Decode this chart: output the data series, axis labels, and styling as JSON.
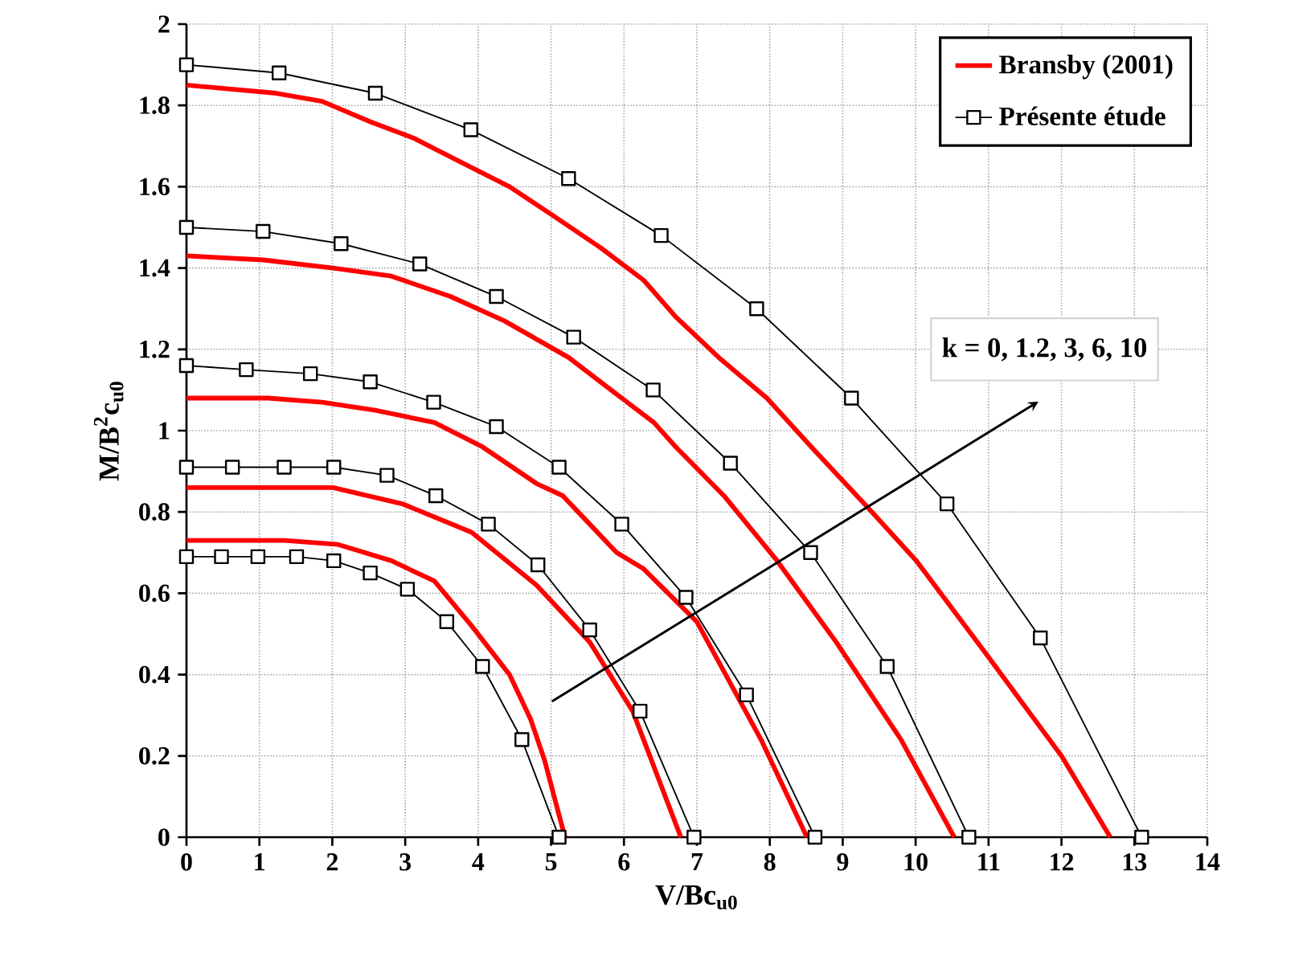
{
  "chart_data": {
    "type": "line",
    "xlabel": "V/Bc$_{u0}$",
    "ylabel": "M/B$^{2}$c$_{u0}$",
    "xlim": [
      0,
      14
    ],
    "ylim": [
      0,
      2
    ],
    "xticks": [
      0,
      1,
      2,
      3,
      4,
      5,
      6,
      7,
      8,
      9,
      10,
      11,
      12,
      13,
      14
    ],
    "yticks": [
      0,
      0.2,
      0.4,
      0.6,
      0.8,
      1,
      1.2,
      1.4,
      1.6,
      1.8,
      2
    ],
    "grid": true,
    "legend": "top right",
    "line_style": "solid",
    "annotations": [
      "k = 0, 1.2,  3,  6,  10"
    ],
    "series": [
      {
        "name": "Bransby (2001)",
        "color": "#ff0000",
        "marker": "none",
        "x": [
          0,
          1.23,
          1.86,
          2.52,
          3.11,
          3.77,
          4.43,
          5.02,
          5.68,
          6.27,
          6.71,
          7.3,
          7.96,
          8.62,
          9.35,
          10.01,
          10.97,
          12.0,
          12.67
        ],
        "values": [
          1.85,
          1.83,
          1.81,
          1.76,
          1.72,
          1.66,
          1.6,
          1.53,
          1.45,
          1.37,
          1.28,
          1.18,
          1.08,
          0.95,
          0.81,
          0.68,
          0.45,
          0.2,
          0
        ]
      },
      {
        "color": "#ff0000",
        "marker": "none",
        "x": [
          0,
          1.05,
          2.01,
          2.81,
          3.62,
          4.36,
          5.24,
          5.97,
          6.41,
          6.71,
          7.37,
          8.1,
          8.91,
          9.8,
          10.53
        ],
        "values": [
          1.43,
          1.42,
          1.4,
          1.38,
          1.33,
          1.27,
          1.18,
          1.08,
          1.02,
          0.96,
          0.84,
          0.68,
          0.48,
          0.24,
          0
        ]
      },
      {
        "color": "#ff0000",
        "marker": "none",
        "x": [
          0,
          1.12,
          1.86,
          2.59,
          3.4,
          4.06,
          4.8,
          5.16,
          5.53,
          5.9,
          6.27,
          7.0,
          7.88,
          8.51
        ],
        "values": [
          1.08,
          1.08,
          1.07,
          1.05,
          1.02,
          0.96,
          0.87,
          0.84,
          0.77,
          0.7,
          0.66,
          0.53,
          0.24,
          0
        ]
      },
      {
        "color": "#ff0000",
        "marker": "none",
        "x": [
          0,
          1.34,
          2.01,
          2.96,
          3.91,
          4.8,
          5.53,
          6.12,
          6.78
        ],
        "values": [
          0.86,
          0.86,
          0.86,
          0.82,
          0.75,
          0.62,
          0.48,
          0.31,
          0
        ]
      },
      {
        "color": "#ff0000",
        "marker": "none",
        "x": [
          0,
          1.34,
          2.08,
          2.81,
          3.4,
          3.91,
          4.43,
          4.72,
          4.91,
          5.19
        ],
        "values": [
          0.73,
          0.73,
          0.72,
          0.68,
          0.63,
          0.52,
          0.4,
          0.29,
          0.19,
          0
        ]
      },
      {
        "name": "Présente étude",
        "color": "#000000",
        "marker": "square",
        "x": [
          0,
          1.27,
          2.59,
          3.9,
          5.24,
          6.51,
          7.82,
          9.12,
          10.43,
          11.71,
          13.1
        ],
        "values": [
          1.9,
          1.88,
          1.83,
          1.74,
          1.62,
          1.48,
          1.3,
          1.08,
          0.82,
          0.49,
          0
        ]
      },
      {
        "color": "#000000",
        "marker": "square",
        "x": [
          0,
          1.05,
          2.12,
          3.2,
          4.25,
          5.31,
          6.4,
          7.46,
          8.56,
          9.61,
          10.73
        ],
        "values": [
          1.5,
          1.49,
          1.46,
          1.41,
          1.33,
          1.23,
          1.1,
          0.92,
          0.7,
          0.42,
          0
        ]
      },
      {
        "color": "#000000",
        "marker": "square",
        "x": [
          0,
          0.82,
          1.7,
          2.52,
          3.39,
          4.25,
          5.11,
          5.97,
          6.85,
          7.68,
          8.62
        ],
        "values": [
          1.16,
          1.15,
          1.14,
          1.12,
          1.07,
          1.01,
          0.91,
          0.77,
          0.59,
          0.35,
          0
        ]
      },
      {
        "color": "#000000",
        "marker": "square",
        "x": [
          0,
          0.63,
          1.34,
          2.02,
          2.75,
          3.42,
          4.14,
          4.82,
          5.53,
          6.22,
          6.96
        ],
        "values": [
          0.91,
          0.91,
          0.91,
          0.91,
          0.89,
          0.84,
          0.77,
          0.67,
          0.51,
          0.31,
          0
        ]
      },
      {
        "color": "#000000",
        "marker": "square",
        "x": [
          0,
          0.48,
          0.98,
          1.51,
          2.02,
          2.52,
          3.03,
          3.57,
          4.06,
          4.6,
          5.11
        ],
        "values": [
          0.69,
          0.69,
          0.69,
          0.69,
          0.68,
          0.65,
          0.61,
          0.53,
          0.42,
          0.24,
          0
        ]
      }
    ]
  }
}
